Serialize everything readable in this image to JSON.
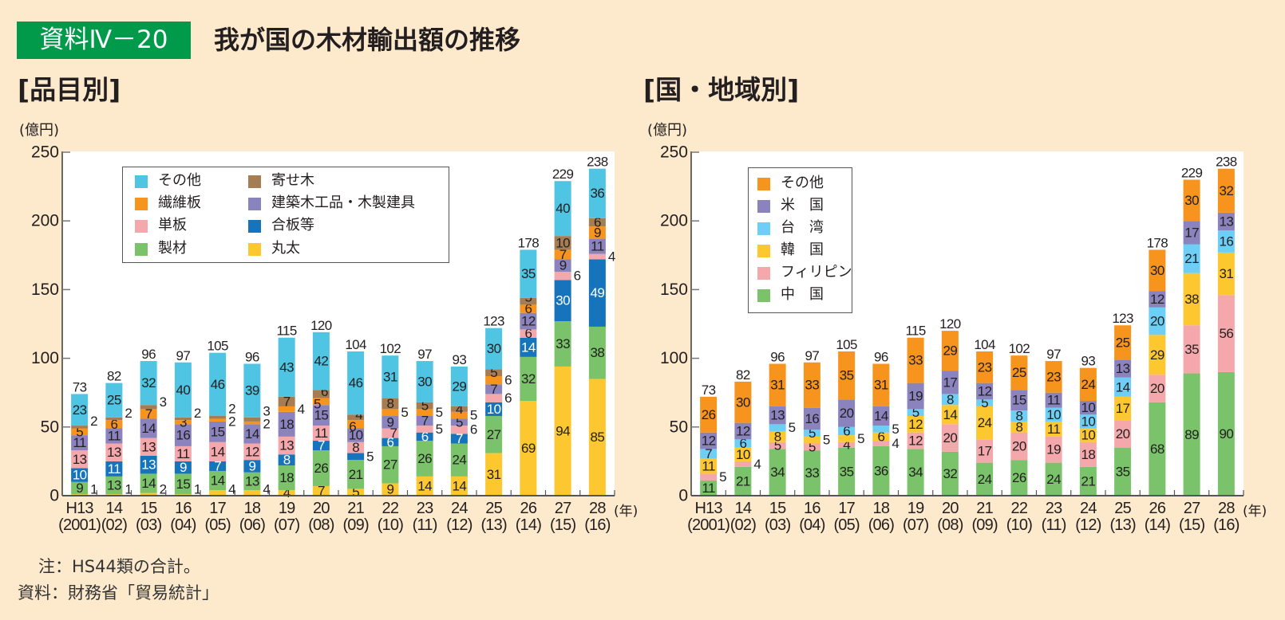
{
  "header": {
    "badge": "資料Ⅳ－20",
    "title": "我が国の木材輸出額の推移"
  },
  "notes": {
    "note": "注：HS44類の合計。",
    "source": "資料：財務省「貿易統計」"
  },
  "chart_data": [
    {
      "type": "bar",
      "stacked": true,
      "title": "[品目別]",
      "ylabel": "(億円)",
      "xlabel": "(年)",
      "ylim": [
        0,
        250
      ],
      "yticks": [
        0,
        50,
        100,
        150,
        200,
        250
      ],
      "grid": false,
      "legend_position": "top-left",
      "categories": [
        "H13",
        "14",
        "15",
        "16",
        "17",
        "18",
        "19",
        "20",
        "21",
        "22",
        "23",
        "24",
        "25",
        "26",
        "27",
        "28"
      ],
      "category_sublabels": [
        "(2001)",
        "(02)",
        "(03)",
        "(04)",
        "(05)",
        "(06)",
        "(07)",
        "(08)",
        "(09)",
        "(10)",
        "(11)",
        "(12)",
        "(13)",
        "(14)",
        "(15)",
        "(16)"
      ],
      "totals": [
        73,
        82,
        96,
        97,
        105,
        96,
        115,
        120,
        104,
        102,
        97,
        93,
        123,
        178,
        229,
        238
      ],
      "series": [
        {
          "name": "丸太",
          "color": "#fdc82f",
          "values": [
            1,
            1,
            2,
            1,
            4,
            4,
            4,
            7,
            5,
            9,
            14,
            14,
            31,
            69,
            94,
            85
          ]
        },
        {
          "name": "製材",
          "color": "#7ac36a",
          "values": [
            9,
            13,
            14,
            15,
            14,
            13,
            18,
            26,
            21,
            27,
            26,
            24,
            27,
            32,
            33,
            38
          ]
        },
        {
          "name": "合板等",
          "color": "#1574bc",
          "values": [
            10,
            11,
            13,
            9,
            7,
            9,
            8,
            7,
            5,
            6,
            6,
            7,
            10,
            14,
            30,
            49
          ]
        },
        {
          "name": "単板",
          "color": "#f5a8ab",
          "values": [
            13,
            13,
            13,
            11,
            14,
            12,
            13,
            11,
            8,
            7,
            5,
            6,
            6,
            6,
            6,
            4
          ]
        },
        {
          "name": "建築木工品・木製建具",
          "color": "#8b83bd",
          "values": [
            11,
            11,
            14,
            16,
            15,
            14,
            18,
            15,
            10,
            9,
            7,
            5,
            7,
            12,
            9,
            11
          ]
        },
        {
          "name": "繊維板",
          "color": "#f7941d",
          "values": [
            5,
            6,
            7,
            3,
            2,
            2,
            4,
            5,
            6,
            5,
            5,
            5,
            6,
            6,
            7,
            9
          ]
        },
        {
          "name": "寄せ木",
          "color": "#a67c52",
          "values": [
            2,
            2,
            3,
            2,
            2,
            3,
            7,
            6,
            4,
            8,
            5,
            4,
            5,
            5,
            10,
            6
          ]
        },
        {
          "name": "その他",
          "color": "#4fc5e3",
          "values": [
            23,
            25,
            32,
            40,
            46,
            39,
            43,
            42,
            46,
            31,
            30,
            29,
            30,
            35,
            40,
            36
          ]
        }
      ]
    },
    {
      "type": "bar",
      "stacked": true,
      "title": "[国・地域別]",
      "ylabel": "(億円)",
      "xlabel": "(年)",
      "ylim": [
        0,
        250
      ],
      "yticks": [
        0,
        50,
        100,
        150,
        200,
        250
      ],
      "grid": false,
      "legend_position": "top-left",
      "categories": [
        "H13",
        "14",
        "15",
        "16",
        "17",
        "18",
        "19",
        "20",
        "21",
        "22",
        "23",
        "24",
        "25",
        "26",
        "27",
        "28"
      ],
      "category_sublabels": [
        "(2001)",
        "(02)",
        "(03)",
        "(04)",
        "(05)",
        "(06)",
        "(07)",
        "(08)",
        "(09)",
        "(10)",
        "(11)",
        "(12)",
        "(13)",
        "(14)",
        "(15)",
        "(16)"
      ],
      "totals": [
        73,
        82,
        96,
        97,
        105,
        96,
        115,
        120,
        104,
        102,
        97,
        93,
        123,
        178,
        229,
        238
      ],
      "series": [
        {
          "name": "中　国",
          "color": "#7ac36a",
          "values": [
            11,
            21,
            34,
            33,
            35,
            36,
            34,
            32,
            24,
            26,
            24,
            21,
            35,
            68,
            89,
            90
          ]
        },
        {
          "name": "フィリピン",
          "color": "#f5a8ab",
          "values": [
            5,
            4,
            5,
            5,
            4,
            4,
            12,
            20,
            17,
            20,
            19,
            18,
            20,
            20,
            35,
            56
          ]
        },
        {
          "name": "韓　国",
          "color": "#fdc82f",
          "values": [
            11,
            10,
            8,
            5,
            5,
            6,
            12,
            14,
            24,
            8,
            11,
            10,
            17,
            29,
            38,
            31
          ]
        },
        {
          "name": "台　湾",
          "color": "#6dcff6",
          "values": [
            7,
            6,
            5,
            5,
            6,
            5,
            5,
            8,
            5,
            8,
            10,
            10,
            14,
            20,
            21,
            16
          ]
        },
        {
          "name": "米　国",
          "color": "#8b83bd",
          "values": [
            12,
            12,
            13,
            16,
            20,
            14,
            19,
            17,
            12,
            15,
            11,
            10,
            13,
            12,
            17,
            13
          ]
        },
        {
          "name": "その他",
          "color": "#f7941d",
          "values": [
            26,
            30,
            31,
            33,
            35,
            31,
            33,
            29,
            23,
            25,
            23,
            24,
            25,
            30,
            30,
            32
          ]
        }
      ]
    }
  ]
}
